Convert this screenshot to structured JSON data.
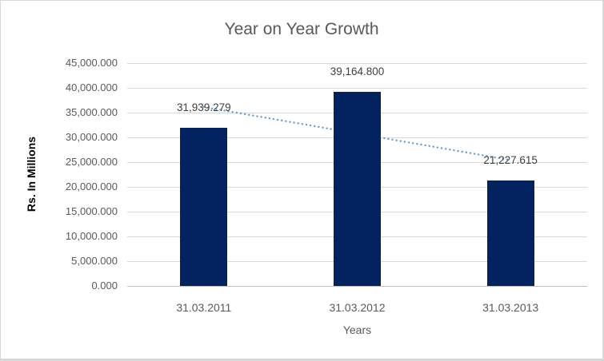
{
  "chart_data": {
    "type": "bar",
    "title": "Year on Year Growth",
    "categories": [
      "31.03.2011",
      "31.03.2012",
      "31.03.2013"
    ],
    "values": [
      31939.279,
      39164.8,
      21227.615
    ],
    "data_labels": [
      "31,939.279",
      "39,164.800",
      "21,227.615"
    ],
    "xlabel": "Years",
    "ylabel": "Rs. In Millions",
    "ylim": [
      0,
      45000
    ],
    "ytick_step": 5000,
    "ytick_labels": [
      "45,000.000",
      "40,000.000",
      "35,000.000",
      "30,000.000",
      "25,000.000",
      "20,000.000",
      "15,000.000",
      "10,000.000",
      "5,000.000",
      "0.000"
    ],
    "grid": true,
    "legend": "none",
    "bar_color": "#02235F",
    "trendline": {
      "type": "linear",
      "style": "dotted",
      "color": "#5B9BD5",
      "endpoint_values": [
        36133.06,
        25421.4
      ]
    },
    "colors": {
      "title": "#595959",
      "tick_label": "#595959",
      "data_label": "#404040",
      "y_axis_title": "#000000",
      "x_axis_title": "#595959",
      "gridline": "#D9D9D9",
      "axis_line": "#BFBFBF",
      "background": "#FFFFFF",
      "border": "#D9D9D9"
    }
  }
}
